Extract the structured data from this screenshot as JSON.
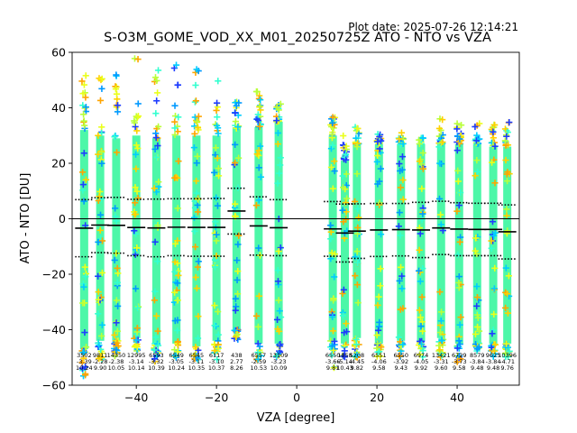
{
  "plot_date": "Plot date: 2025-07-26 12:14:21",
  "chart_data": {
    "type": "scatter",
    "title": "S-O3M_GOME_VOD_XX_M01_20250725Z ATO - NTO vs VZA",
    "xlabel": "VZA [degree]",
    "ylabel": "ATO - NTO [DU]",
    "xlim": [
      -56,
      55.5
    ],
    "ylim": [
      -60,
      60
    ],
    "xticks": [
      -40,
      -20,
      0,
      20,
      40
    ],
    "yticks": [
      -60,
      -40,
      -20,
      0,
      20,
      40,
      60
    ],
    "grid": false,
    "reference_line": 0,
    "colors": {
      "main": "#4df7a8",
      "scatter": [
        "#1f3dff",
        "#0099ff",
        "#00ccff",
        "#33ffd0",
        "#b8ff3a",
        "#eaff1a",
        "#ffd000",
        "#ffa500"
      ],
      "mean_line": "#000000",
      "sigma_line": "#000000"
    },
    "bins": [
      {
        "x": -53,
        "count": "3502",
        "mean": -3.39,
        "sd": 10.24,
        "sigma_up": 6.9,
        "sigma_lo": -13.7,
        "core_hi": 32,
        "core_lo": -47,
        "spread_hi": 52,
        "spread_lo": -58
      },
      {
        "x": -49,
        "count": "9811",
        "mean": -2.28,
        "sd": 9.9,
        "sigma_up": 7.6,
        "sigma_lo": -12.2,
        "core_hi": 30,
        "core_lo": -44,
        "spread_hi": 55,
        "spread_lo": -52
      },
      {
        "x": -45,
        "count": "14350",
        "mean": -2.38,
        "sd": 10.05,
        "sigma_up": 7.7,
        "sigma_lo": -12.4,
        "core_hi": 29,
        "core_lo": -44,
        "spread_hi": 52,
        "spread_lo": -50
      },
      {
        "x": -40,
        "count": "12995",
        "mean": -3.14,
        "sd": 10.14,
        "sigma_up": 7.0,
        "sigma_lo": -13.3,
        "core_hi": 30,
        "core_lo": -43,
        "spread_hi": 59,
        "spread_lo": -48
      },
      {
        "x": -35,
        "count": "6593",
        "mean": -3.32,
        "sd": 10.39,
        "sigma_up": 7.1,
        "sigma_lo": -13.7,
        "core_hi": 29,
        "core_lo": -45,
        "spread_hi": 57,
        "spread_lo": -52
      },
      {
        "x": -30,
        "count": "6549",
        "mean": -3.05,
        "sd": 10.24,
        "sigma_up": 7.2,
        "sigma_lo": -13.3,
        "core_hi": 30,
        "core_lo": -45,
        "spread_hi": 60,
        "spread_lo": -50
      },
      {
        "x": -25,
        "count": "6545",
        "mean": -3.11,
        "sd": 10.35,
        "sigma_up": 7.2,
        "sigma_lo": -13.5,
        "core_hi": 30,
        "core_lo": -46,
        "spread_hi": 54,
        "spread_lo": -51
      },
      {
        "x": -20,
        "count": "6117",
        "mean": -3.1,
        "sd": 10.37,
        "sigma_up": 7.3,
        "sigma_lo": -13.5,
        "core_hi": 30,
        "core_lo": -44,
        "spread_hi": 50,
        "spread_lo": -51
      },
      {
        "x": -15,
        "count": "438",
        "mean": 2.77,
        "sd": 8.26,
        "sigma_up": 11.0,
        "sigma_lo": -5.5,
        "core_hi": 33,
        "core_lo": -40,
        "spread_hi": 45,
        "spread_lo": -44
      },
      {
        "x": -9.5,
        "count": "6557",
        "mean": -2.59,
        "sd": 10.53,
        "sigma_up": 7.9,
        "sigma_lo": -13.1,
        "core_hi": 33,
        "core_lo": -45,
        "spread_hi": 46,
        "spread_lo": -52
      },
      {
        "x": -4.5,
        "count": "13109",
        "mean": -3.23,
        "sd": 10.09,
        "sigma_up": 6.9,
        "sigma_lo": -13.3,
        "core_hi": 35,
        "core_lo": -45,
        "spread_hi": 42,
        "spread_lo": -50
      },
      {
        "x": 9,
        "count": "6550",
        "mean": -3.66,
        "sd": 9.81,
        "sigma_up": 6.2,
        "sigma_lo": -13.5,
        "core_hi": 30,
        "core_lo": -44,
        "spread_hi": 37,
        "spread_lo": -54
      },
      {
        "x": 12,
        "count": "1858",
        "mean": -5.14,
        "sd": 10.43,
        "sigma_up": 5.3,
        "sigma_lo": -15.6,
        "core_hi": 21,
        "core_lo": -45,
        "spread_hi": 30,
        "spread_lo": -52
      },
      {
        "x": 15,
        "count": "5208",
        "mean": -4.45,
        "sd": 9.82,
        "sigma_up": 5.4,
        "sigma_lo": -14.3,
        "core_hi": 27,
        "core_lo": -43,
        "spread_hi": 33,
        "spread_lo": -50
      },
      {
        "x": 20.5,
        "count": "6551",
        "mean": -4.06,
        "sd": 9.58,
        "sigma_up": 5.5,
        "sigma_lo": -13.6,
        "core_hi": 27,
        "core_lo": -45,
        "spread_hi": 31,
        "spread_lo": -50
      },
      {
        "x": 26,
        "count": "6550",
        "mean": -3.92,
        "sd": 9.43,
        "sigma_up": 5.5,
        "sigma_lo": -13.4,
        "core_hi": 27,
        "core_lo": -44,
        "spread_hi": 31,
        "spread_lo": -51
      },
      {
        "x": 31,
        "count": "6974",
        "mean": -4.05,
        "sd": 9.92,
        "sigma_up": 5.9,
        "sigma_lo": -14.0,
        "core_hi": 27,
        "core_lo": -44,
        "spread_hi": 32,
        "spread_lo": -50
      },
      {
        "x": 36,
        "count": "13421",
        "mean": -3.31,
        "sd": 9.6,
        "sigma_up": 6.3,
        "sigma_lo": -12.9,
        "core_hi": 27,
        "core_lo": -43,
        "spread_hi": 38,
        "spread_lo": -50
      },
      {
        "x": 40.5,
        "count": "6729",
        "mean": -3.73,
        "sd": 9.58,
        "sigma_up": 5.8,
        "sigma_lo": -13.3,
        "core_hi": 27,
        "core_lo": -45,
        "spread_hi": 35,
        "spread_lo": -52
      },
      {
        "x": 45,
        "count": "8579",
        "mean": -3.84,
        "sd": 9.48,
        "sigma_up": 5.6,
        "sigma_lo": -13.3,
        "core_hi": 27,
        "core_lo": -45,
        "spread_hi": 35,
        "spread_lo": -48
      },
      {
        "x": 49,
        "count": "9625",
        "mean": -3.84,
        "sd": 9.48,
        "sigma_up": 5.6,
        "sigma_lo": -13.3,
        "core_hi": 26,
        "core_lo": -45,
        "spread_hi": 34,
        "spread_lo": -50
      },
      {
        "x": 52.5,
        "count": "10396",
        "mean": -4.71,
        "sd": 9.76,
        "sigma_up": 5.0,
        "sigma_lo": -14.5,
        "core_hi": 26,
        "core_lo": -45,
        "spread_hi": 35,
        "spread_lo": -50
      }
    ]
  }
}
